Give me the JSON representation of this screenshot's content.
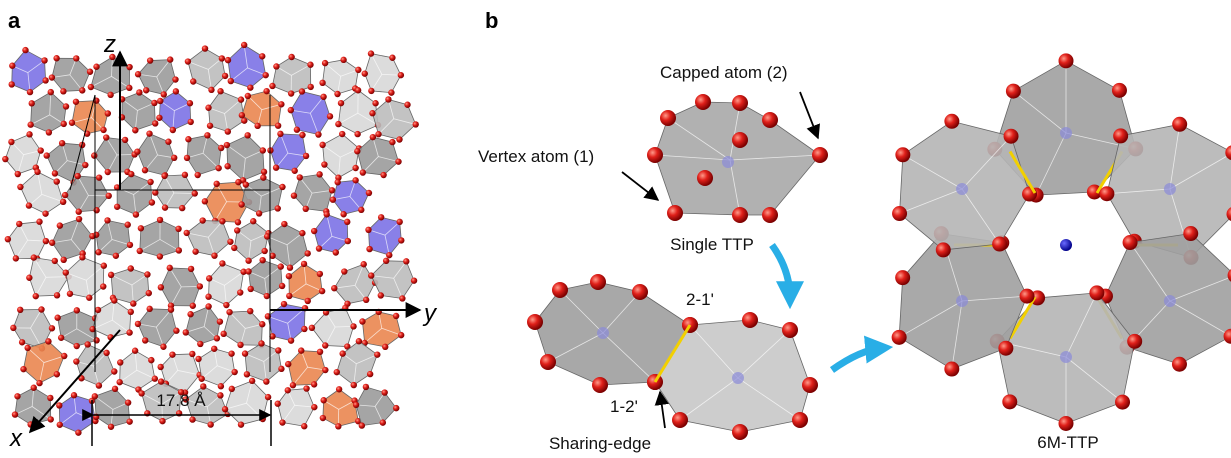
{
  "panel_a": {
    "label": "a",
    "axes": {
      "z": "z",
      "y": "y",
      "x": "x"
    },
    "scale_bar": "17.8 Å"
  },
  "panel_b": {
    "label": "b",
    "annotations": {
      "capped_atom": "Capped atom (2)",
      "vertex_atom": "Vertex atom (1)",
      "single_ttp": "Single TTP",
      "edge_2_1": "2-1'",
      "edge_1_2": "1-2'",
      "sharing_edge": "Sharing-edge",
      "six_m_ttp": "6M-TTP"
    }
  }
}
